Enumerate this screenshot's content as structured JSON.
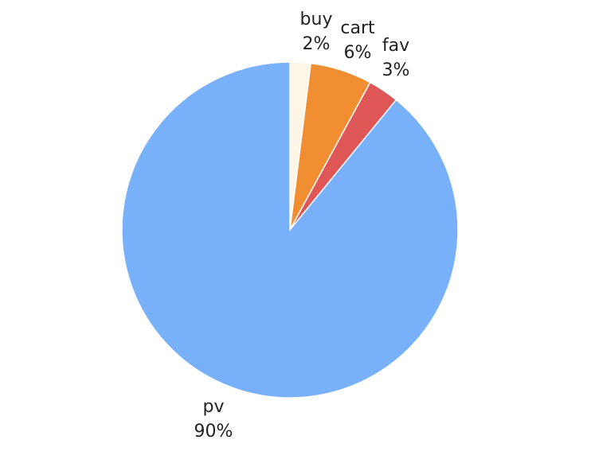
{
  "chart_data": {
    "type": "pie",
    "title": "",
    "start": "top",
    "direction": "clockwise",
    "slices": [
      {
        "label": "buy",
        "percent_text": "2%",
        "value": 2,
        "color": "#FDF5E6"
      },
      {
        "label": "cart",
        "percent_text": "6%",
        "value": 6,
        "color": "#F28E32"
      },
      {
        "label": "fav",
        "percent_text": "3%",
        "value": 3,
        "color": "#DE5656"
      },
      {
        "label": "pv",
        "percent_text": "90%",
        "value": 90,
        "color": "#78B0F9"
      }
    ]
  }
}
